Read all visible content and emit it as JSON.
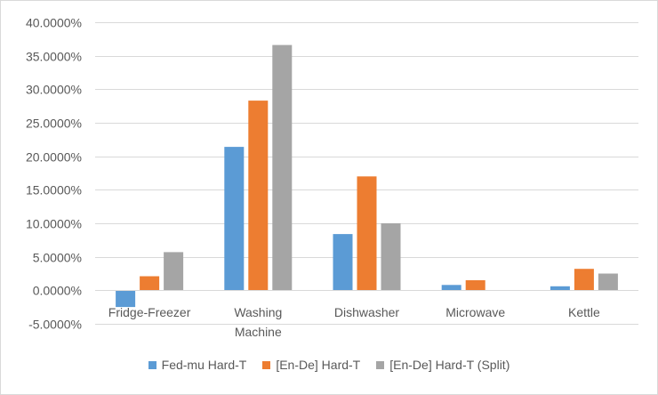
{
  "chart_data": {
    "type": "bar",
    "categories": [
      "Fridge-Freezer",
      "Washing Machine",
      "Dishwasher",
      "Microwave",
      "Kettle"
    ],
    "category_label_lines": [
      [
        "Fridge-Freezer"
      ],
      [
        "Washing",
        "Machine"
      ],
      [
        "Dishwasher"
      ],
      [
        "Microwave"
      ],
      [
        "Kettle"
      ]
    ],
    "series": [
      {
        "name": "Fed-mu Hard-T",
        "color": "#5b9bd5",
        "values": [
          -2.5,
          21.4,
          8.4,
          0.8,
          0.6
        ]
      },
      {
        "name": "[En-De] Hard-T",
        "color": "#ed7d31",
        "values": [
          2.1,
          28.3,
          17.0,
          1.5,
          3.2
        ]
      },
      {
        "name": "[En-De] Hard-T (Split)",
        "color": "#a5a5a5",
        "values": [
          5.7,
          36.6,
          10.0,
          0.0,
          2.5
        ]
      }
    ],
    "ylim": [
      -5,
      40
    ],
    "yticks": [
      -5,
      0,
      5,
      10,
      15,
      20,
      25,
      30,
      35,
      40
    ],
    "ytick_labels": [
      "-5.0000%",
      "0.0000%",
      "5.0000%",
      "10.0000%",
      "15.0000%",
      "20.0000%",
      "25.0000%",
      "30.0000%",
      "35.0000%",
      "40.0000%"
    ],
    "grid": true,
    "legend_position": "bottom",
    "title": "",
    "xlabel": "",
    "ylabel": ""
  }
}
